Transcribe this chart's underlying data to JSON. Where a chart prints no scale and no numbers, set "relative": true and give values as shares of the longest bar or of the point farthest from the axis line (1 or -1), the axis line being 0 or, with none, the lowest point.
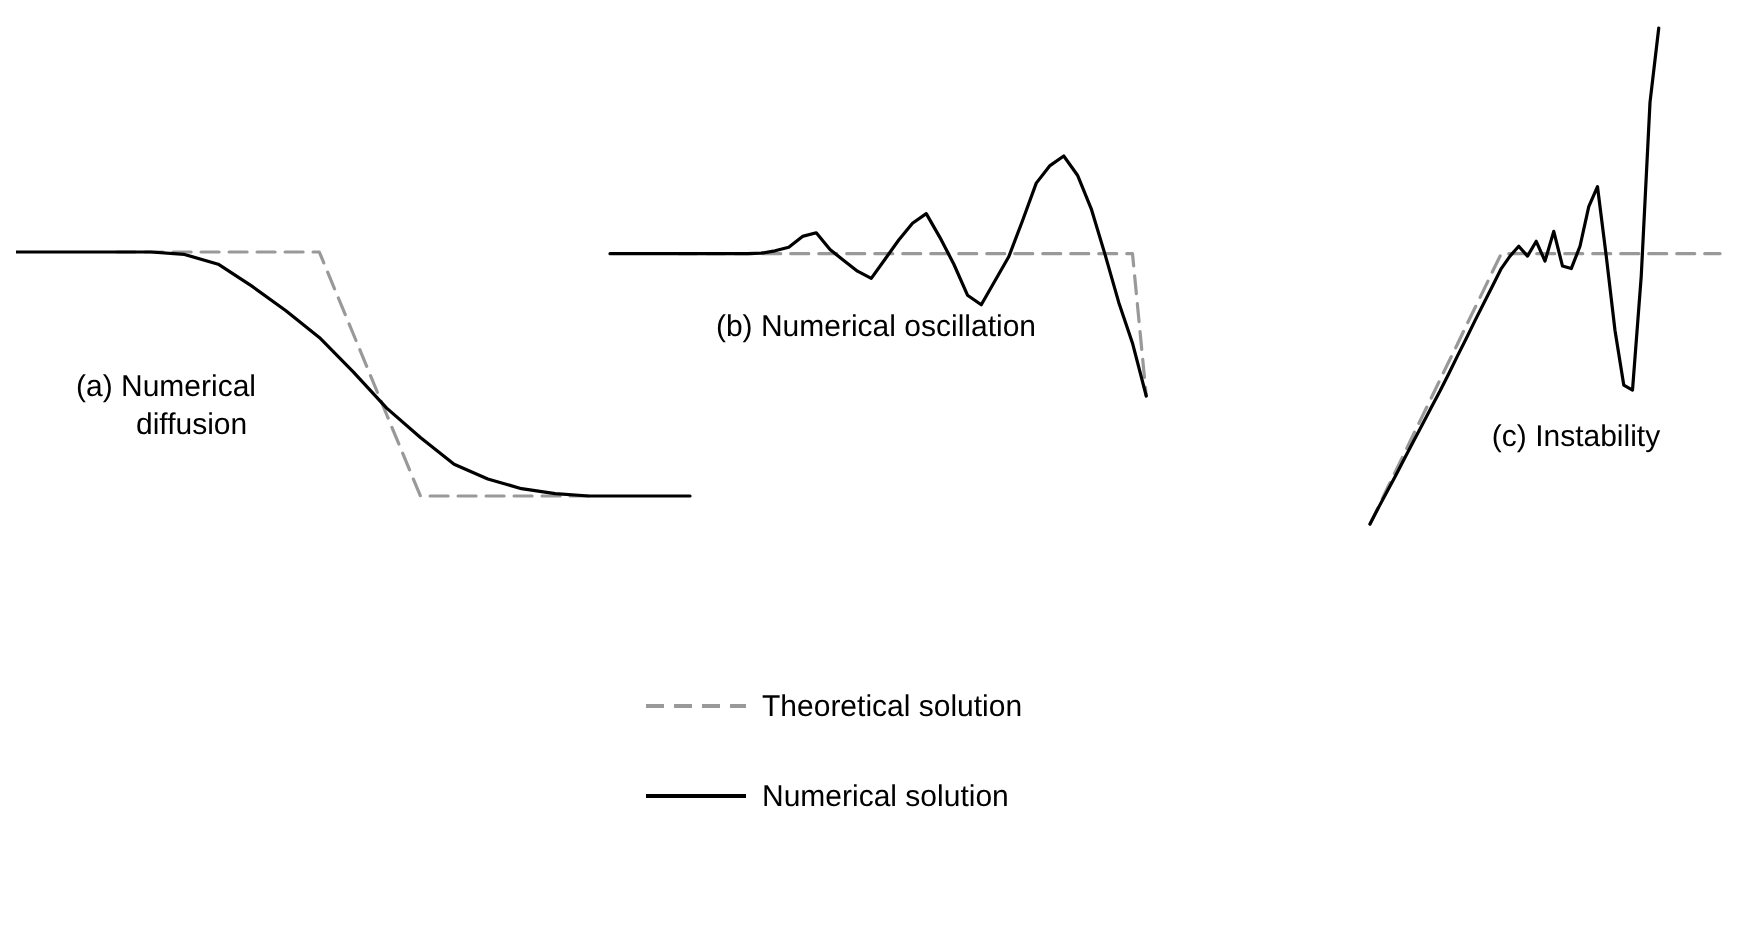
{
  "chart_data": [
    {
      "type": "line",
      "relative": true,
      "categories": [
        null,
        null,
        null,
        null,
        null,
        null,
        null,
        null,
        null,
        null,
        null,
        null,
        null,
        null,
        null,
        null,
        null,
        null,
        null,
        null,
        null
      ],
      "annotations": [
        "(a) Numerical diffusion"
      ],
      "series": [
        {
          "color": "#999999",
          "line_style": "dashed",
          "values": [
            null,
            null,
            null,
            1,
            1,
            1,
            1,
            1,
            1,
            1,
            0.667,
            0.333,
            0,
            0,
            0,
            0,
            0,
            0,
            null,
            null,
            null
          ]
        },
        {
          "color": "#000000",
          "line_style": "solid",
          "values": [
            1,
            1,
            1,
            1,
            1,
            0.99,
            0.95,
            0.86,
            0.76,
            0.65,
            0.51,
            0.36,
            0.24,
            0.13,
            0.07,
            0.03,
            0.01,
            0,
            0,
            0,
            0
          ]
        }
      ]
    },
    {
      "type": "line",
      "relative": true,
      "categories": [
        null,
        null,
        null,
        null,
        null,
        null,
        null,
        null,
        null,
        null,
        null,
        null,
        null,
        null,
        null,
        null,
        null,
        null,
        null,
        null,
        null,
        null,
        null,
        null,
        null,
        null,
        null,
        null,
        null,
        null,
        null,
        null,
        null,
        null,
        null,
        null,
        null,
        null,
        null,
        null,
        null
      ],
      "legend": "bottom",
      "annotations": [
        "(b) Numerical oscillation"
      ],
      "series": [
        {
          "name": "Theoretical solution",
          "color": "#999999",
          "line_style": "dashed",
          "values": [
            null,
            null,
            null,
            null,
            null,
            0.593,
            0.593,
            0.593,
            0.593,
            0.593,
            0.593,
            0.593,
            0.593,
            0.593,
            0.593,
            0.593,
            0.593,
            0.593,
            0.593,
            0.593,
            0.593,
            0.593,
            0.593,
            0.593,
            0.593,
            0.593,
            0.593,
            0.593,
            0.593,
            0.593,
            0.593,
            0.593,
            0.593,
            0.593,
            0.593,
            0.593,
            0.593,
            0.593,
            0.593,
            0,
            null
          ]
        },
        {
          "name": "Numerical solution",
          "color": "#000000",
          "line_style": "solid",
          "values": [
            0.593,
            0.593,
            0.593,
            0.593,
            0.593,
            0.593,
            0.593,
            0.593,
            0.593,
            0.593,
            0.593,
            0.595,
            0.605,
            0.62,
            0.665,
            0.68,
            0.61,
            0.565,
            0.52,
            0.49,
            0.57,
            0.65,
            0.72,
            0.76,
            0.66,
            0.55,
            0.42,
            0.38,
            0.48,
            0.58,
            0.73,
            0.887,
            0.96,
            1,
            0.92,
            0.78,
            0.59,
            0.39,
            0.22,
            0,
            null
          ]
        }
      ]
    },
    {
      "type": "line",
      "relative": true,
      "categories": [
        null,
        null,
        null,
        null,
        null,
        null,
        null,
        null,
        null,
        null,
        null,
        null,
        null,
        null,
        null,
        null,
        null,
        null,
        null,
        null,
        null,
        null,
        null,
        null,
        null,
        null,
        null,
        null,
        null,
        null,
        null,
        null,
        null,
        null,
        null,
        null,
        null,
        null,
        null,
        null,
        null
      ],
      "annotations": [
        "(c) Instability"
      ],
      "series": [
        {
          "color": "#999999",
          "line_style": "dashed",
          "values": [
            0,
            0.036,
            0.073,
            0.109,
            0.145,
            0.182,
            0.218,
            0.254,
            0.291,
            0.327,
            0.363,
            0.4,
            0.436,
            0.472,
            0.509,
            0.545,
            0.545,
            0.545,
            0.545,
            0.545,
            0.545,
            0.545,
            0.545,
            0.545,
            0.545,
            0.545,
            0.545,
            0.545,
            0.545,
            0.545,
            0.545,
            0.545,
            0.545,
            0.545,
            0.545,
            0.545,
            0.545,
            0.545,
            0.545,
            0.545,
            0.545
          ]
        },
        {
          "color": "#000000",
          "line_style": "solid",
          "values": [
            0,
            0.034,
            0.067,
            0.1,
            0.134,
            0.168,
            0.201,
            0.235,
            0.268,
            0.303,
            0.339,
            0.374,
            0.41,
            0.445,
            0.48,
            0.515,
            0.54,
            0.56,
            0.54,
            0.57,
            0.53,
            0.59,
            0.52,
            0.515,
            0.56,
            0.64,
            0.68,
            0.54,
            0.39,
            0.28,
            0.27,
            0.5,
            0.85,
            1,
            null,
            null,
            null,
            null,
            null,
            null,
            null
          ]
        }
      ]
    }
  ]
}
